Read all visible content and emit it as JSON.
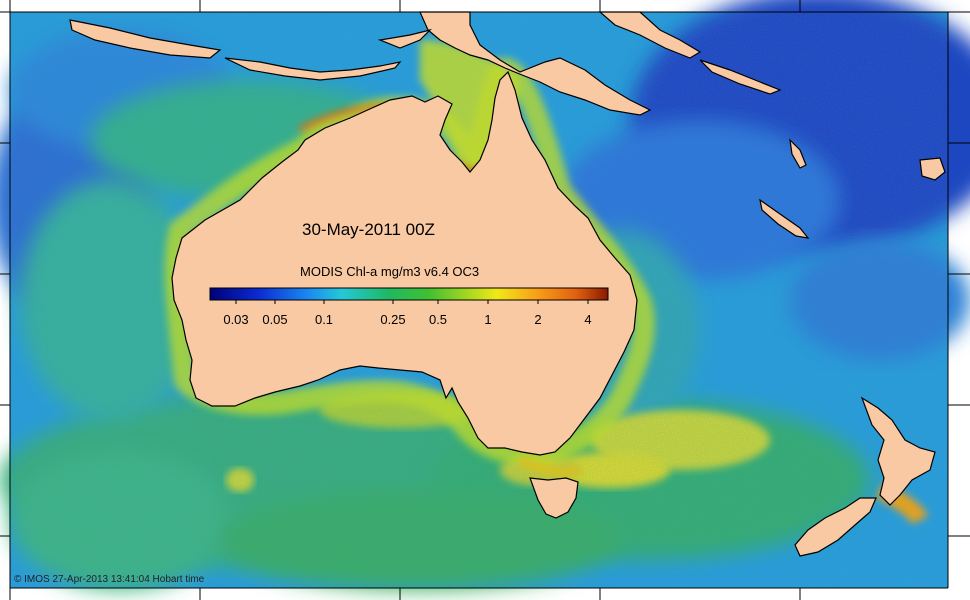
{
  "map": {
    "date_label": "30-May-2011 00Z",
    "colorbar": {
      "title": "MODIS Chl-a mg/m3 v6.4 OC3",
      "tick_labels": [
        "0.03",
        "0.05",
        "0.1",
        "0.25",
        "0.5",
        "1",
        "2",
        "4"
      ],
      "colors": [
        "#00007a",
        "#0a2ad0",
        "#1a8cf0",
        "#24c8d8",
        "#20b860",
        "#40c030",
        "#a8d820",
        "#f0e818",
        "#f8a018",
        "#e06010",
        "#8a1a00"
      ]
    },
    "credit": "© IMOS 27-Apr-2013 13:41:04 Hobart time",
    "colors": {
      "land": "#f8c9a2",
      "ocean_deep": "#1a50c8",
      "ocean_mid": "#2aa8d8",
      "ocean_green": "#30b050",
      "coast_yellow": "#d8e020",
      "coast_red": "#c04010"
    }
  }
}
